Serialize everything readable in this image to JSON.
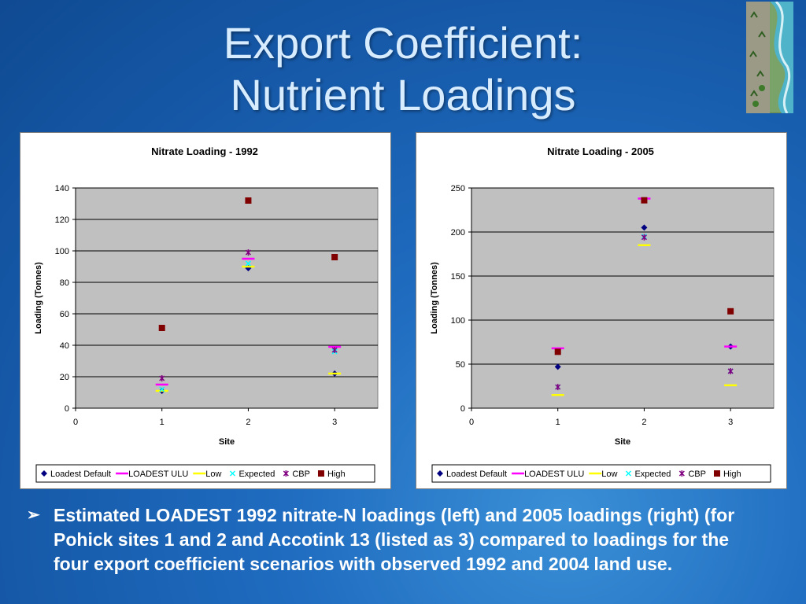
{
  "slide": {
    "title_line1": "Export Coefficient:",
    "title_line2": "Nutrient Loadings",
    "bullet": "Estimated LOADEST 1992 nitrate-N loadings (left) and 2005 loadings (right) (for Pohick sites 1 and 2 and Accotink 13 (listed as 3) compared to loadings for the four export coefficient scenarios with observed 1992 and 2004 land use.",
    "bullet_marker": "➢"
  },
  "chart_data": [
    {
      "type": "scatter",
      "title": "Nitrate Loading - 1992",
      "xlabel": "Site",
      "ylabel": "Loading (Tonnes)",
      "xlim": [
        0,
        3.5
      ],
      "ylim": [
        0,
        140
      ],
      "xticks": [
        0,
        1,
        2,
        3
      ],
      "yticks": [
        0,
        20,
        40,
        60,
        80,
        100,
        120,
        140
      ],
      "grid": true,
      "legend_position": "bottom",
      "plot_background": "#c0c0c0",
      "series": [
        {
          "name": "Loadest Default",
          "marker": "diamond",
          "color": "#000080",
          "x": [
            1,
            2,
            3
          ],
          "y": [
            11,
            89,
            22
          ]
        },
        {
          "name": "LOADEST ULU",
          "marker": "dash",
          "color": "#ff00ff",
          "x": [
            1,
            2,
            3
          ],
          "y": [
            15,
            95,
            39
          ]
        },
        {
          "name": "Low",
          "marker": "dash",
          "color": "#ffff00",
          "x": [
            1,
            2,
            3
          ],
          "y": [
            11,
            90,
            22
          ]
        },
        {
          "name": "Expected",
          "marker": "x",
          "color": "#00ffff",
          "x": [
            1,
            2,
            3
          ],
          "y": [
            12,
            92,
            36
          ]
        },
        {
          "name": "CBP",
          "marker": "star",
          "color": "#800080",
          "x": [
            1,
            2,
            3
          ],
          "y": [
            19,
            99,
            37
          ]
        },
        {
          "name": "High",
          "marker": "square",
          "color": "#800000",
          "x": [
            1,
            2,
            3
          ],
          "y": [
            51,
            132,
            96
          ]
        }
      ]
    },
    {
      "type": "scatter",
      "title": "Nitrate Loading - 2005",
      "xlabel": "Site",
      "ylabel": "Loading (Tonnes)",
      "xlim": [
        0,
        3.5
      ],
      "ylim": [
        0,
        250
      ],
      "xticks": [
        0,
        1,
        2,
        3
      ],
      "yticks": [
        0,
        50,
        100,
        150,
        200,
        250
      ],
      "grid": true,
      "legend_position": "bottom",
      "plot_background": "#c0c0c0",
      "series": [
        {
          "name": "Loadest Default",
          "marker": "diamond",
          "color": "#000080",
          "x": [
            1,
            2,
            3
          ],
          "y": [
            47,
            205,
            70
          ]
        },
        {
          "name": "LOADEST ULU",
          "marker": "dash",
          "color": "#ff00ff",
          "x": [
            1,
            2,
            3
          ],
          "y": [
            68,
            238,
            70
          ]
        },
        {
          "name": "Low",
          "marker": "dash",
          "color": "#ffff00",
          "x": [
            1,
            2,
            3
          ],
          "y": [
            15,
            185,
            26
          ]
        },
        {
          "name": "Expected",
          "marker": "x",
          "color": "#00ffff",
          "x": [
            1,
            2,
            3
          ],
          "y": [
            24,
            195,
            42
          ]
        },
        {
          "name": "CBP",
          "marker": "star",
          "color": "#800080",
          "x": [
            1,
            2,
            3
          ],
          "y": [
            24,
            194,
            42
          ]
        },
        {
          "name": "High",
          "marker": "square",
          "color": "#800000",
          "x": [
            1,
            2,
            3
          ],
          "y": [
            64,
            236,
            110
          ]
        }
      ]
    }
  ]
}
